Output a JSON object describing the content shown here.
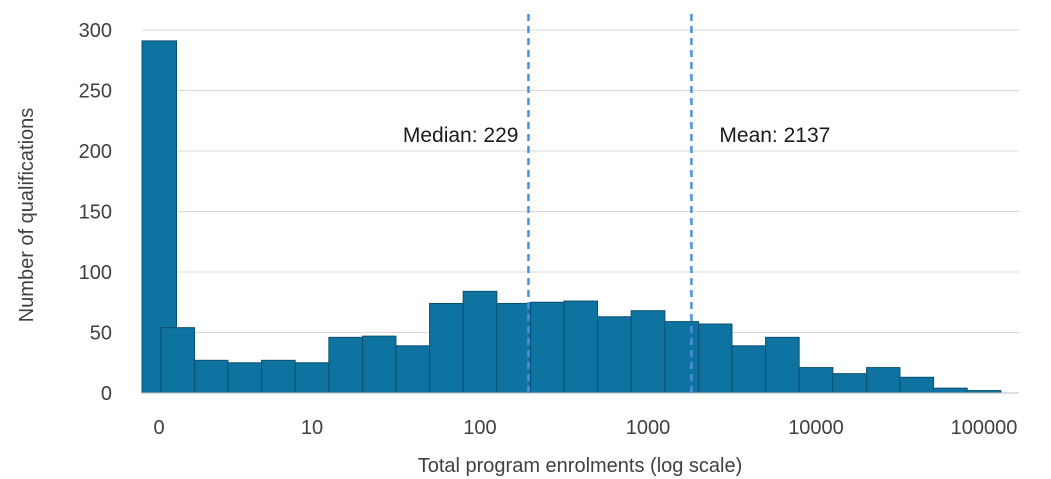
{
  "chart_data": {
    "type": "bar",
    "xlabel": "Total program enrolments (log scale)",
    "ylabel": "Number of qualifications",
    "x_scale": "log",
    "x_tick_labels": [
      "0",
      "10",
      "100",
      "1000",
      "10000",
      "100000"
    ],
    "ylim": [
      0,
      300
    ],
    "y_ticks": [
      0,
      50,
      100,
      150,
      200,
      250,
      300
    ],
    "grid": "horizontal",
    "bar_color": "#0e73a0",
    "bar_edge_color": "#0b4f6e",
    "reference_line_color": "#4a90e2",
    "bins": [
      {
        "from": 0,
        "to": 1.26,
        "count": 291
      },
      {
        "from": 1.26,
        "to": 2.0,
        "count": 54
      },
      {
        "from": 2.0,
        "to": 3.16,
        "count": 27
      },
      {
        "from": 3.16,
        "to": 5.01,
        "count": 25
      },
      {
        "from": 5.01,
        "to": 7.94,
        "count": 27
      },
      {
        "from": 7.94,
        "to": 12.6,
        "count": 25
      },
      {
        "from": 12.6,
        "to": 20.0,
        "count": 46
      },
      {
        "from": 20.0,
        "to": 31.6,
        "count": 47
      },
      {
        "from": 31.6,
        "to": 50.1,
        "count": 39
      },
      {
        "from": 50.1,
        "to": 79.4,
        "count": 74
      },
      {
        "from": 79.4,
        "to": 126,
        "count": 84
      },
      {
        "from": 126,
        "to": 200,
        "count": 74
      },
      {
        "from": 200,
        "to": 316,
        "count": 75
      },
      {
        "from": 316,
        "to": 501,
        "count": 76
      },
      {
        "from": 501,
        "to": 794,
        "count": 63
      },
      {
        "from": 794,
        "to": 1260,
        "count": 68
      },
      {
        "from": 1260,
        "to": 2000,
        "count": 59
      },
      {
        "from": 2000,
        "to": 3160,
        "count": 57
      },
      {
        "from": 3160,
        "to": 5010,
        "count": 39
      },
      {
        "from": 5010,
        "to": 7940,
        "count": 46
      },
      {
        "from": 7940,
        "to": 12600,
        "count": 21
      },
      {
        "from": 12600,
        "to": 20000,
        "count": 16
      },
      {
        "from": 20000,
        "to": 31600,
        "count": 21
      },
      {
        "from": 31600,
        "to": 50100,
        "count": 13
      },
      {
        "from": 50100,
        "to": 79400,
        "count": 4
      },
      {
        "from": 79400,
        "to": 126000,
        "count": 2
      }
    ],
    "reference_lines": [
      {
        "label": "Median: 229",
        "value": 229,
        "label_side": "left"
      },
      {
        "label": "Mean: 2137",
        "value": 2137,
        "label_side": "right"
      }
    ]
  }
}
